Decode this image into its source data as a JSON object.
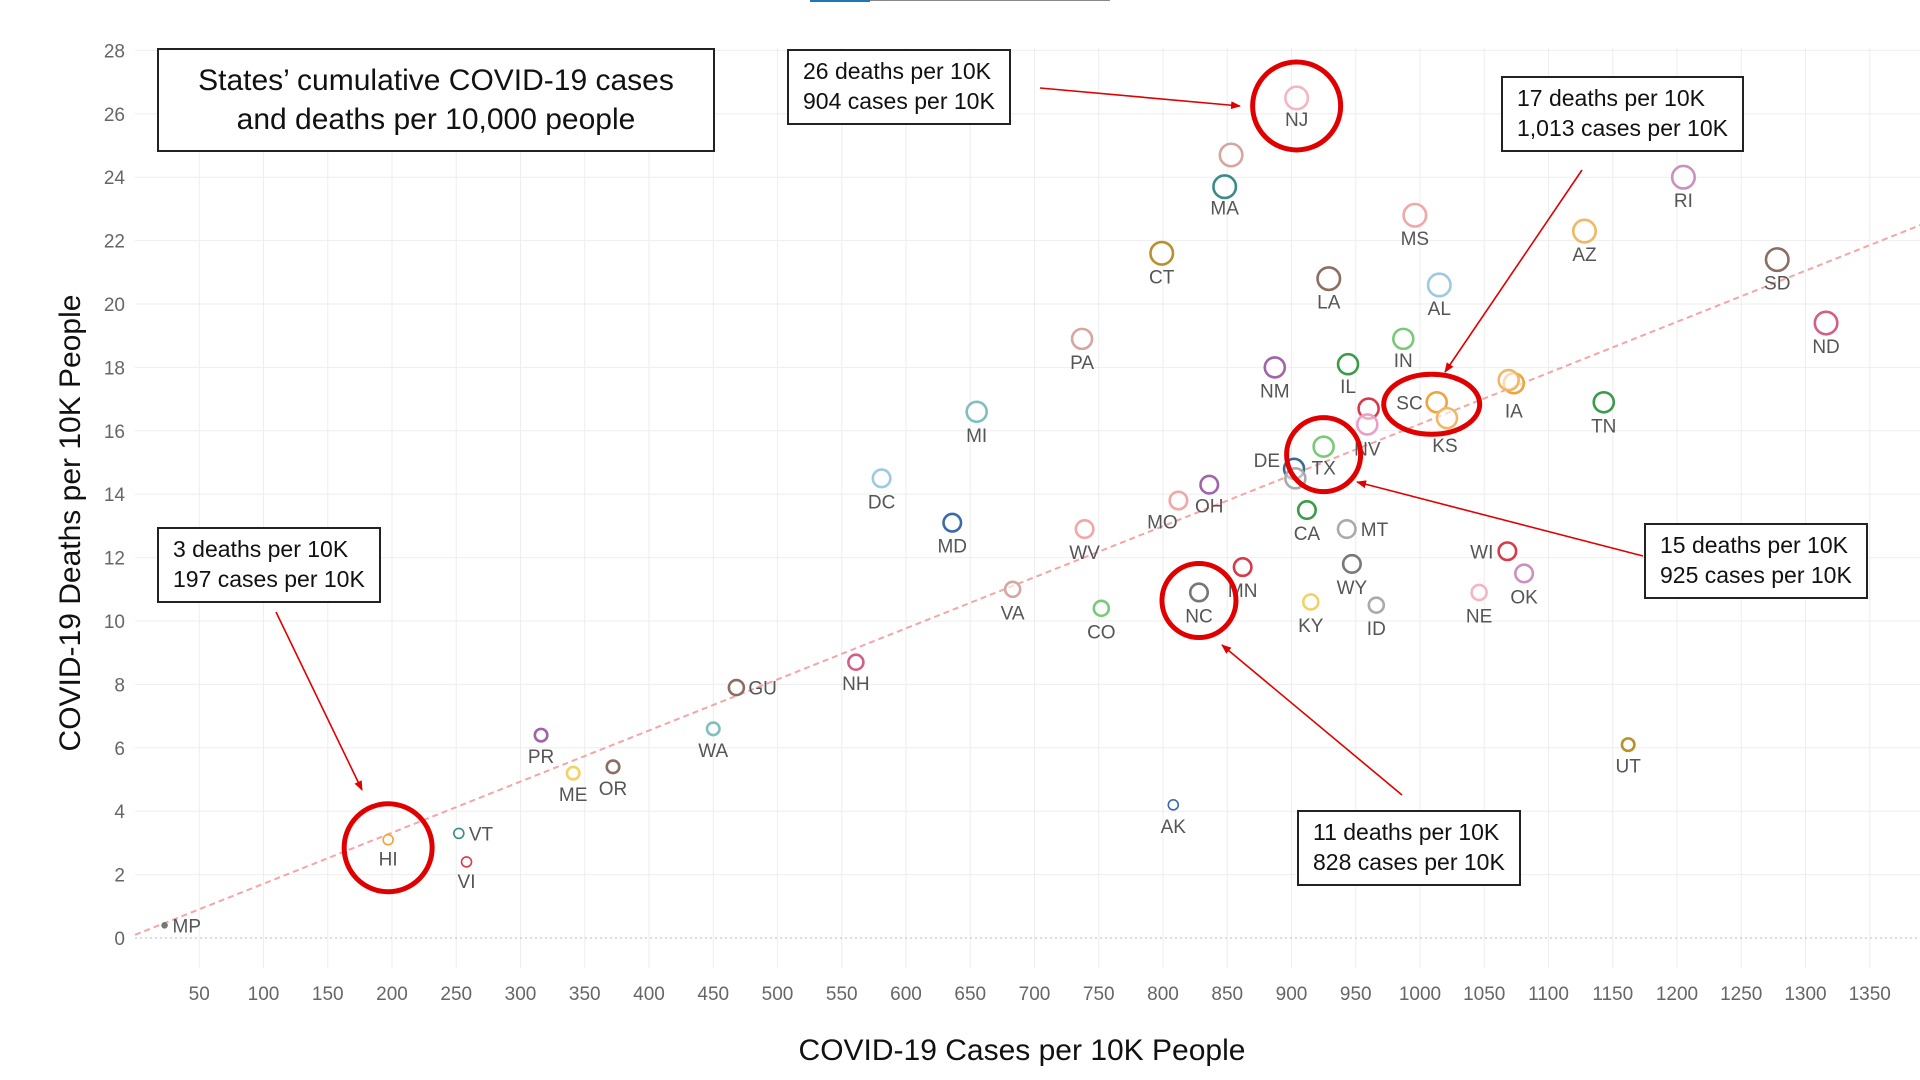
{
  "header_strip_color": "#1f77b4",
  "title": {
    "line1": "States’ cumulative COVID-19 cases",
    "line2": "and deaths per 10,000 people"
  },
  "annotations": {
    "nj": {
      "line1": "26 deaths per 10K",
      "line2": "904 cases per 10K"
    },
    "sc": {
      "line1": "17 deaths per 10K",
      "line2": "1,013 cases per 10K"
    },
    "hi": {
      "line1": "3 deaths per 10K",
      "line2": "197 cases per 10K"
    },
    "tx": {
      "line1": "15 deaths per 10K",
      "line2": "925 cases per 10K"
    },
    "nc": {
      "line1": "11 deaths per 10K",
      "line2": "828 cases per 10K"
    }
  },
  "highlight_color": "#e00000",
  "chart_data": {
    "type": "scatter",
    "xlabel": "COVID-19 Cases per 10K People",
    "ylabel": "COVID-19 Deaths per 10K People",
    "xlim": [
      0,
      1390
    ],
    "ylim": [
      -1,
      28.7
    ],
    "x_ticks": [
      "50",
      "100",
      "150",
      "200",
      "250",
      "300",
      "350",
      "400",
      "450",
      "500",
      "550",
      "600",
      "650",
      "700",
      "750",
      "800",
      "850",
      "900",
      "950",
      "1000",
      "1050",
      "1100",
      "1150",
      "1200",
      "1250",
      "1300",
      "1350"
    ],
    "y_ticks": [
      "0",
      "2",
      "4",
      "6",
      "8",
      "10",
      "12",
      "14",
      "16",
      "18",
      "20",
      "22",
      "24",
      "26",
      "28"
    ],
    "grid": true,
    "trendline": {
      "color": "#f4a6a6",
      "style": "dashed",
      "x": [
        0,
        1390
      ],
      "y": [
        0.1,
        22.5
      ]
    },
    "points": [
      {
        "label": "NJ",
        "x": 904,
        "y": 26.5,
        "size": 9,
        "color": "#f4b6c2"
      },
      {
        "label": "",
        "x": 853,
        "y": 24.7,
        "size": 9,
        "color": "#d6a6a0"
      },
      {
        "label": "MA",
        "x": 848,
        "y": 23.7,
        "size": 9,
        "color": "#3a8b8b"
      },
      {
        "label": "RI",
        "x": 1205,
        "y": 24.0,
        "size": 9,
        "color": "#c990c0"
      },
      {
        "label": "MS",
        "x": 996,
        "y": 22.8,
        "size": 9,
        "color": "#f4a6a6"
      },
      {
        "label": "AZ",
        "x": 1128,
        "y": 22.3,
        "size": 9,
        "color": "#f2b766"
      },
      {
        "label": "CT",
        "x": 799,
        "y": 21.6,
        "size": 9,
        "color": "#b8912d"
      },
      {
        "label": "SD",
        "x": 1278,
        "y": 21.4,
        "size": 9,
        "color": "#8c6d62"
      },
      {
        "label": "LA",
        "x": 929,
        "y": 20.8,
        "size": 9,
        "color": "#8c6d62"
      },
      {
        "label": "AL",
        "x": 1015,
        "y": 20.6,
        "size": 9,
        "color": "#9ecae1"
      },
      {
        "label": "ND",
        "x": 1316,
        "y": 19.4,
        "size": 9,
        "color": "#d35f88"
      },
      {
        "label": "PA",
        "x": 737,
        "y": 18.9,
        "size": 8,
        "color": "#d6a6a0"
      },
      {
        "label": "IN",
        "x": 987,
        "y": 18.9,
        "size": 8,
        "color": "#7ac97a"
      },
      {
        "label": "NM",
        "x": 887,
        "y": 18.0,
        "size": 8,
        "color": "#a064a8"
      },
      {
        "label": "IL",
        "x": 944,
        "y": 18.1,
        "size": 8,
        "color": "#3b9b4a"
      },
      {
        "label": "IA",
        "x": 1073,
        "y": 17.5,
        "size": 8,
        "color": "#f2a33a"
      },
      {
        "label": "",
        "x": 1069,
        "y": 17.6,
        "size": 8,
        "color": "#f2b766"
      },
      {
        "label": "TN",
        "x": 1143,
        "y": 16.9,
        "size": 8,
        "color": "#3b9b4a"
      },
      {
        "label": "SC",
        "x": 1013,
        "y": 16.9,
        "size": 8,
        "color": "#f2a33a"
      },
      {
        "label": "KS",
        "x": 1021,
        "y": 16.4,
        "size": 8,
        "color": "#f2b766"
      },
      {
        "label": "",
        "x": 960,
        "y": 16.7,
        "size": 8,
        "color": "#d83a4a"
      },
      {
        "label": "NV",
        "x": 959,
        "y": 16.2,
        "size": 8,
        "color": "#e8a0c8"
      },
      {
        "label": "MI",
        "x": 655,
        "y": 16.6,
        "size": 8,
        "color": "#7fbfbf"
      },
      {
        "label": "TX",
        "x": 925,
        "y": 15.5,
        "size": 8,
        "color": "#7ac97a"
      },
      {
        "label": "DE",
        "x": 902,
        "y": 14.8,
        "size": 8,
        "color": "#3a6b8b"
      },
      {
        "label": "",
        "x": 903,
        "y": 14.5,
        "size": 8,
        "color": "#aaaaaa"
      },
      {
        "label": "DC",
        "x": 581,
        "y": 14.5,
        "size": 7,
        "color": "#9ecae1"
      },
      {
        "label": "OH",
        "x": 836,
        "y": 14.3,
        "size": 7,
        "color": "#a064a8"
      },
      {
        "label": "MO",
        "x": 812,
        "y": 13.8,
        "size": 7,
        "color": "#f4a6a6"
      },
      {
        "label": "CA",
        "x": 912,
        "y": 13.5,
        "size": 7,
        "color": "#3b9b4a"
      },
      {
        "label": "MD",
        "x": 636,
        "y": 13.1,
        "size": 7,
        "color": "#3a6ba8"
      },
      {
        "label": "MT",
        "x": 943,
        "y": 12.9,
        "size": 7,
        "color": "#aaaaaa"
      },
      {
        "label": "WV",
        "x": 739,
        "y": 12.9,
        "size": 7,
        "color": "#f4a6a6"
      },
      {
        "label": "WI",
        "x": 1068,
        "y": 12.2,
        "size": 7,
        "color": "#d83a4a"
      },
      {
        "label": "MN",
        "x": 862,
        "y": 11.7,
        "size": 7,
        "color": "#d83a4a"
      },
      {
        "label": "WY",
        "x": 947,
        "y": 11.8,
        "size": 7,
        "color": "#777777"
      },
      {
        "label": "OK",
        "x": 1081,
        "y": 11.5,
        "size": 7,
        "color": "#c990c0"
      },
      {
        "label": "NC",
        "x": 828,
        "y": 10.9,
        "size": 7,
        "color": "#777777"
      },
      {
        "label": "NE",
        "x": 1046,
        "y": 10.9,
        "size": 6,
        "color": "#f4b6c2"
      },
      {
        "label": "VA",
        "x": 683,
        "y": 11.0,
        "size": 6,
        "color": "#d6a6a0"
      },
      {
        "label": "KY",
        "x": 915,
        "y": 10.6,
        "size": 6,
        "color": "#f2d266"
      },
      {
        "label": "ID",
        "x": 966,
        "y": 10.5,
        "size": 6,
        "color": "#aaaaaa"
      },
      {
        "label": "CO",
        "x": 752,
        "y": 10.4,
        "size": 6,
        "color": "#7ac97a"
      },
      {
        "label": "NH",
        "x": 561,
        "y": 8.7,
        "size": 6,
        "color": "#d35f88"
      },
      {
        "label": "GU",
        "x": 468,
        "y": 7.9,
        "size": 6,
        "color": "#8c6d62"
      },
      {
        "label": "PR",
        "x": 316,
        "y": 6.4,
        "size": 5,
        "color": "#a064a8"
      },
      {
        "label": "WA",
        "x": 450,
        "y": 6.6,
        "size": 5,
        "color": "#7fbfbf"
      },
      {
        "label": "UT",
        "x": 1162,
        "y": 6.1,
        "size": 5,
        "color": "#b8912d"
      },
      {
        "label": "OR",
        "x": 372,
        "y": 5.4,
        "size": 5,
        "color": "#8c6d62"
      },
      {
        "label": "ME",
        "x": 341,
        "y": 5.2,
        "size": 5,
        "color": "#f2d266"
      },
      {
        "label": "AK",
        "x": 808,
        "y": 4.2,
        "size": 4,
        "color": "#3a6ba8"
      },
      {
        "label": "VT",
        "x": 252,
        "y": 3.3,
        "size": 4,
        "color": "#3a8b8b"
      },
      {
        "label": "HI",
        "x": 197,
        "y": 3.1,
        "size": 4,
        "color": "#f2a33a"
      },
      {
        "label": "VI",
        "x": 258,
        "y": 2.4,
        "size": 4,
        "color": "#d83a4a"
      },
      {
        "label": "MP",
        "x": 23,
        "y": 0.4,
        "size": 2,
        "color": "#777777"
      }
    ],
    "highlighted": [
      "NJ",
      "SC",
      "TX",
      "NC",
      "HI"
    ]
  }
}
